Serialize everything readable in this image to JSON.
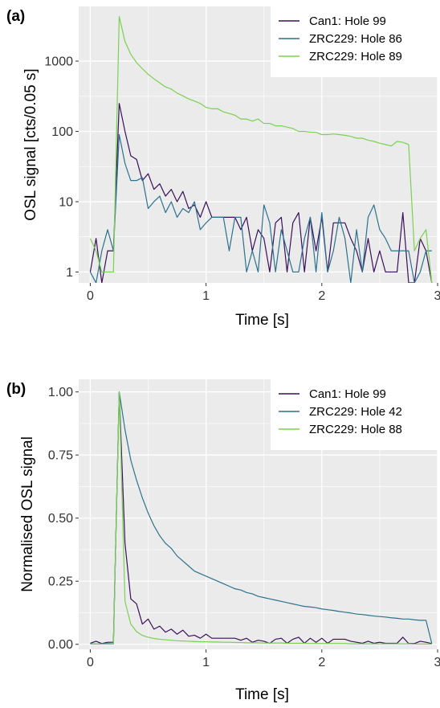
{
  "panels": [
    {
      "label": "(a)",
      "ylabel": "OSL signal [cts/0.05 s]",
      "xlabel": "Time [s]",
      "xticks": [
        {
          "v": 0,
          "t": "0"
        },
        {
          "v": 1,
          "t": "1"
        },
        {
          "v": 2,
          "t": "2"
        },
        {
          "v": 3,
          "t": "3"
        }
      ],
      "yticks": [
        {
          "v": 1,
          "t": "1"
        },
        {
          "v": 10,
          "t": "10"
        },
        {
          "v": 100,
          "t": "100"
        },
        {
          "v": 1000,
          "t": "1000"
        }
      ]
    },
    {
      "label": "(b)",
      "ylabel": "Normalised OSL signal",
      "xlabel": "Time [s]",
      "xticks": [
        {
          "v": 0,
          "t": "0"
        },
        {
          "v": 1,
          "t": "1"
        },
        {
          "v": 2,
          "t": "2"
        },
        {
          "v": 3,
          "t": "3"
        }
      ],
      "yticks": [
        {
          "v": 0,
          "t": "0.00"
        },
        {
          "v": 0.25,
          "t": "0.25"
        },
        {
          "v": 0.5,
          "t": "0.50"
        },
        {
          "v": 0.75,
          "t": "0.75"
        },
        {
          "v": 1,
          "t": "1.00"
        }
      ]
    }
  ],
  "colors": {
    "can1": "#3b0f5c",
    "zrc_a": "#2c728e",
    "zrc_b": "#7ad151",
    "panel_bg": "#ebebeb",
    "grid": "#ffffff"
  },
  "chart_data": [
    {
      "type": "line",
      "title": "",
      "xlabel": "Time [s]",
      "ylabel": "OSL signal [cts/0.05 s]",
      "yscale": "log",
      "xlim": [
        -0.1,
        3.0
      ],
      "ylim": [
        0.7,
        6000
      ],
      "grid": true,
      "legend_position": "top-right",
      "x": [
        0,
        0.05,
        0.1,
        0.15,
        0.2,
        0.25,
        0.3,
        0.35,
        0.4,
        0.45,
        0.5,
        0.55,
        0.6,
        0.65,
        0.7,
        0.75,
        0.8,
        0.85,
        0.9,
        0.95,
        1.0,
        1.05,
        1.1,
        1.15,
        1.2,
        1.25,
        1.3,
        1.35,
        1.4,
        1.45,
        1.5,
        1.55,
        1.6,
        1.65,
        1.7,
        1.75,
        1.8,
        1.85,
        1.9,
        1.95,
        2.0,
        2.05,
        2.1,
        2.15,
        2.2,
        2.25,
        2.3,
        2.35,
        2.4,
        2.45,
        2.5,
        2.55,
        2.6,
        2.65,
        2.7,
        2.75,
        2.8,
        2.85,
        2.9,
        2.95
      ],
      "series": [
        {
          "name": "Can1: Hole 99",
          "color_key": "can1",
          "values": [
            1,
            3,
            0.7,
            2,
            2,
            250,
            100,
            45,
            40,
            20,
            25,
            15,
            18,
            12,
            15,
            10,
            14,
            8,
            9,
            6,
            10,
            6,
            6,
            6,
            6,
            6,
            4,
            6,
            2,
            4,
            3,
            1,
            5,
            6,
            1,
            5,
            7,
            1,
            6,
            2,
            6,
            1,
            5,
            5,
            5,
            3,
            2,
            1,
            3,
            1,
            2,
            1,
            1,
            1,
            7,
            0.7,
            0.7,
            3,
            2,
            0.7
          ]
        },
        {
          "name": "ZRC229: Hole 86",
          "color_key": "zrc_a",
          "values": [
            1,
            0.7,
            2,
            4,
            2,
            90,
            35,
            20,
            20,
            22,
            8,
            10,
            12,
            7,
            10,
            6,
            8,
            7,
            10,
            4,
            5,
            6,
            6,
            6,
            2,
            6,
            6,
            1,
            2,
            1,
            9,
            5,
            1,
            4,
            2,
            1,
            1,
            3,
            6,
            1,
            7,
            1,
            2,
            6,
            3,
            0.7,
            4,
            1,
            6,
            9,
            4,
            3,
            2,
            2,
            2,
            2,
            0.7,
            1,
            2,
            2
          ]
        },
        {
          "name": "ZRC229: Hole 89",
          "color_key": "zrc_b",
          "values": [
            3,
            2,
            1,
            1,
            1,
            4300,
            1900,
            1250,
            950,
            780,
            650,
            560,
            490,
            430,
            400,
            350,
            320,
            290,
            270,
            250,
            220,
            210,
            210,
            190,
            180,
            170,
            150,
            150,
            140,
            150,
            130,
            130,
            120,
            120,
            115,
            110,
            100,
            100,
            98,
            97,
            90,
            90,
            92,
            90,
            88,
            85,
            80,
            80,
            75,
            72,
            68,
            65,
            62,
            72,
            70,
            65,
            2,
            3,
            4,
            0.7
          ]
        }
      ]
    },
    {
      "type": "line",
      "title": "",
      "xlabel": "Time [s]",
      "ylabel": "Normalised OSL signal",
      "yscale": "linear",
      "xlim": [
        -0.1,
        3.0
      ],
      "ylim": [
        -0.02,
        1.05
      ],
      "grid": true,
      "legend_position": "top-right",
      "x": [
        0,
        0.05,
        0.1,
        0.15,
        0.2,
        0.25,
        0.3,
        0.35,
        0.4,
        0.45,
        0.5,
        0.55,
        0.6,
        0.65,
        0.7,
        0.75,
        0.8,
        0.85,
        0.9,
        0.95,
        1.0,
        1.05,
        1.1,
        1.15,
        1.2,
        1.25,
        1.3,
        1.35,
        1.4,
        1.45,
        1.5,
        1.55,
        1.6,
        1.65,
        1.7,
        1.75,
        1.8,
        1.85,
        1.9,
        1.95,
        2.0,
        2.05,
        2.1,
        2.15,
        2.2,
        2.25,
        2.3,
        2.35,
        2.4,
        2.45,
        2.5,
        2.55,
        2.6,
        2.65,
        2.7,
        2.75,
        2.8,
        2.85,
        2.9,
        2.95
      ],
      "series": [
        {
          "name": "Can1: Hole 99",
          "color_key": "can1",
          "values": [
            0.004,
            0.012,
            0.003,
            0.008,
            0.008,
            1.0,
            0.4,
            0.18,
            0.16,
            0.08,
            0.1,
            0.06,
            0.072,
            0.048,
            0.06,
            0.04,
            0.056,
            0.032,
            0.036,
            0.024,
            0.04,
            0.024,
            0.024,
            0.024,
            0.024,
            0.024,
            0.016,
            0.024,
            0.008,
            0.016,
            0.012,
            0.004,
            0.02,
            0.024,
            0.004,
            0.02,
            0.028,
            0.004,
            0.024,
            0.008,
            0.024,
            0.004,
            0.02,
            0.02,
            0.02,
            0.012,
            0.008,
            0.004,
            0.012,
            0.004,
            0.008,
            0.004,
            0.004,
            0.004,
            0.028,
            0.003,
            0.003,
            0.012,
            0.008,
            0.003
          ]
        },
        {
          "name": "ZRC229: Hole 42",
          "color_key": "zrc_a",
          "values": [
            0.002,
            0.001,
            0.002,
            0.003,
            0.002,
            1.0,
            0.85,
            0.73,
            0.65,
            0.58,
            0.52,
            0.47,
            0.43,
            0.4,
            0.38,
            0.35,
            0.33,
            0.31,
            0.29,
            0.28,
            0.27,
            0.26,
            0.25,
            0.24,
            0.23,
            0.22,
            0.215,
            0.205,
            0.2,
            0.19,
            0.185,
            0.18,
            0.175,
            0.17,
            0.165,
            0.16,
            0.155,
            0.15,
            0.148,
            0.145,
            0.14,
            0.137,
            0.134,
            0.13,
            0.127,
            0.124,
            0.12,
            0.118,
            0.115,
            0.112,
            0.11,
            0.108,
            0.105,
            0.103,
            0.1,
            0.1,
            0.097,
            0.095,
            0.095,
            0.003
          ]
        },
        {
          "name": "ZRC229: Hole 88",
          "color_key": "zrc_b",
          "values": [
            0.001,
            0.001,
            0.001,
            0.001,
            0.001,
            1.0,
            0.17,
            0.08,
            0.05,
            0.035,
            0.028,
            0.023,
            0.02,
            0.018,
            0.016,
            0.014,
            0.013,
            0.012,
            0.011,
            0.01,
            0.01,
            0.009,
            0.009,
            0.008,
            0.008,
            0.007,
            0.007,
            0.006,
            0.006,
            0.006,
            0.005,
            0.005,
            0.005,
            0.005,
            0.004,
            0.004,
            0.004,
            0.004,
            0.003,
            0.003,
            0.003,
            0.003,
            0.003,
            0.003,
            0.003,
            0.002,
            0.002,
            0.002,
            0.002,
            0.002,
            0.002,
            0.002,
            0.002,
            0.002,
            0.002,
            0.002,
            0.001,
            0.001,
            0.001,
            0.001
          ]
        }
      ]
    }
  ]
}
